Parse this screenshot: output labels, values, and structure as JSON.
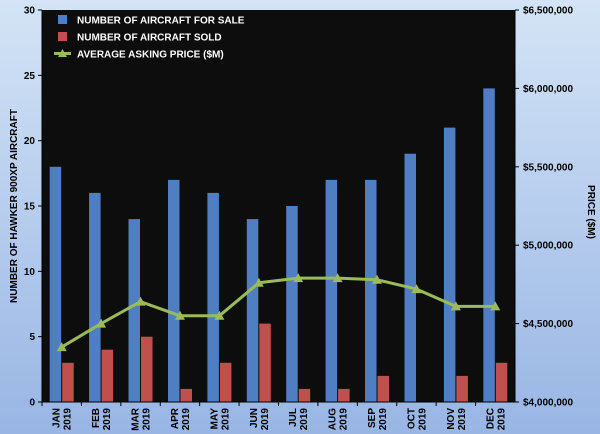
{
  "chart_data": {
    "type": "bar",
    "categories": [
      [
        "JAN",
        "2019"
      ],
      [
        "FEB",
        "2019"
      ],
      [
        "MAR",
        "2019"
      ],
      [
        "APR",
        "2019"
      ],
      [
        "MAY",
        "2019"
      ],
      [
        "JUN",
        "2019"
      ],
      [
        "JUL",
        "2019"
      ],
      [
        "AUG",
        "2019"
      ],
      [
        "SEP",
        "2019"
      ],
      [
        "OCT",
        "2019"
      ],
      [
        "NOV",
        "2019"
      ],
      [
        "DEC",
        "2019"
      ]
    ],
    "series": [
      {
        "name": "NUMBER OF AIRCRAFT FOR SALE",
        "type": "bar",
        "axis": "left",
        "color": "#4f7fc2",
        "values": [
          18,
          16,
          14,
          17,
          16,
          14,
          15,
          17,
          17,
          19,
          21,
          24
        ]
      },
      {
        "name": "NUMBER OF AIRCRAFT SOLD",
        "type": "bar",
        "axis": "left",
        "color": "#c0504d",
        "values": [
          3,
          4,
          5,
          1,
          3,
          6,
          1,
          1,
          2,
          0,
          2,
          3
        ]
      },
      {
        "name": "AVERAGE ASKING PRICE ($M)",
        "type": "line",
        "axis": "right",
        "color": "#9bbb59",
        "values": [
          4350000,
          4500000,
          4640000,
          4550000,
          4550000,
          4760000,
          4790000,
          4790000,
          4780000,
          4720000,
          4610000,
          4610000
        ]
      }
    ],
    "ylabel": "NUMBER OF HAWKER 900XP AIRCRAFT",
    "ylim": [
      0,
      30
    ],
    "yticks": [
      0,
      5,
      10,
      15,
      20,
      25,
      30
    ],
    "y2label": "PRICE ($M)",
    "y2lim": [
      4000000,
      6500000
    ],
    "y2ticks": [
      {
        "value": 4000000,
        "label": "$4,000,000"
      },
      {
        "value": 4500000,
        "label": "$4,500,000"
      },
      {
        "value": 5000000,
        "label": "$5,000,000"
      },
      {
        "value": 5500000,
        "label": "$5,500,000"
      },
      {
        "value": 6000000,
        "label": "$6,000,000"
      },
      {
        "value": 6500000,
        "label": "$6,500,000"
      }
    ],
    "grid": false,
    "legend_position": "top-left",
    "plot_background": "#0d0d0d"
  }
}
